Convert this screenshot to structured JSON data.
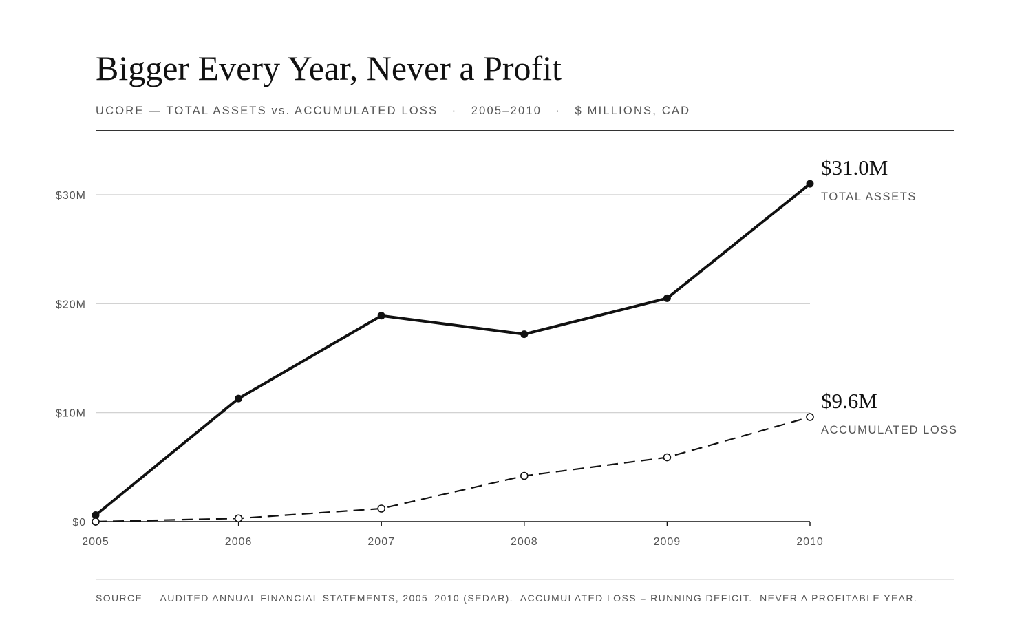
{
  "header": {
    "title": "Bigger Every Year, Never a Profit",
    "subtitle": "UCORE — TOTAL ASSETS vs. ACCUMULATED LOSS   ·   2005–2010   ·   $ MILLIONS, CAD"
  },
  "footer": {
    "source": "SOURCE — AUDITED ANNUAL FINANCIAL STATEMENTS, 2005–2010 (SEDAR).  ACCUMULATED LOSS = RUNNING DEFICIT.  NEVER A PROFITABLE YEAR."
  },
  "chart_data": {
    "type": "line",
    "title": "Bigger Every Year, Never a Profit",
    "subtitle": "UCORE — TOTAL ASSETS vs. ACCUMULATED LOSS · 2005–2010 · $ MILLIONS, CAD",
    "xlabel": "",
    "ylabel": "",
    "x": [
      "2005",
      "2006",
      "2007",
      "2008",
      "2009",
      "2010"
    ],
    "ylim": [
      0,
      30
    ],
    "y_ticks": [
      0,
      10,
      20,
      30
    ],
    "y_tick_labels": [
      "$0",
      "$10M",
      "$20M",
      "$30M"
    ],
    "grid": true,
    "legend": "direct labels at line ends",
    "series": [
      {
        "name": "TOTAL ASSETS",
        "values": [
          0.6,
          11.3,
          18.9,
          17.2,
          20.5,
          31.0
        ],
        "end_label": "$31.0M",
        "style": "solid",
        "marker": "filled",
        "color": "#111111"
      },
      {
        "name": "ACCUMULATED LOSS",
        "values": [
          0.0,
          0.3,
          1.2,
          4.2,
          5.9,
          9.6
        ],
        "end_label": "$9.6M",
        "style": "dashed",
        "marker": "hollow",
        "color": "#111111"
      }
    ],
    "colors": {
      "line": "#111111",
      "grid": "#cccccc",
      "text_muted": "#555555",
      "rule": "#333333"
    }
  }
}
